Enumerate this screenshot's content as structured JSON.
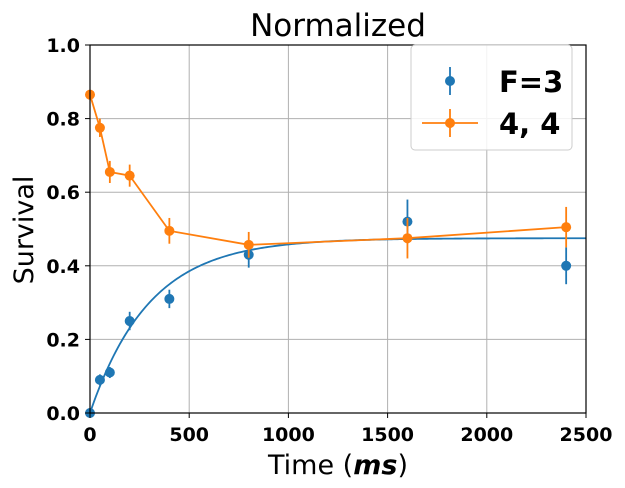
{
  "chart_data": {
    "type": "scatter",
    "title": "Normalized",
    "xlabel_prefix": "Time (",
    "xlabel_unit": "ms",
    "xlabel_suffix": ")",
    "ylabel": "Survival",
    "xlim": [
      0,
      2500
    ],
    "ylim": [
      0.0,
      1.0
    ],
    "xticks": [
      0,
      500,
      1000,
      1500,
      2000,
      2500
    ],
    "xtick_labels": [
      "0",
      "500",
      "1000",
      "1500",
      "2000",
      "2500"
    ],
    "yticks": [
      0.0,
      0.2,
      0.4,
      0.6,
      0.8,
      1.0
    ],
    "ytick_labels": [
      "0.0",
      "0.2",
      "0.4",
      "0.6",
      "0.8",
      "1.0"
    ],
    "grid": true,
    "legend_position": "top-right",
    "series": [
      {
        "name": "F=3",
        "style": "markers",
        "color": "#1f77b4",
        "x": [
          0,
          50,
          100,
          200,
          400,
          800,
          1600,
          2400
        ],
        "y": [
          0.0,
          0.09,
          0.11,
          0.25,
          0.31,
          0.43,
          0.52,
          0.4
        ],
        "yerr": [
          0.01,
          0.015,
          0.015,
          0.025,
          0.025,
          0.035,
          0.06,
          0.05
        ]
      },
      {
        "name": "4, 4",
        "style": "line-markers",
        "color": "#ff7f0e",
        "x": [
          0,
          50,
          100,
          200,
          400,
          800,
          1600,
          2400
        ],
        "y": [
          0.865,
          0.775,
          0.655,
          0.645,
          0.495,
          0.457,
          0.475,
          0.505
        ],
        "yerr": [
          0.01,
          0.025,
          0.03,
          0.03,
          0.035,
          0.035,
          0.055,
          0.055
        ]
      }
    ],
    "fit_curve": {
      "color": "#1f77b4",
      "model": "saturating-exponential",
      "amplitude": 0.475,
      "time_constant": 300,
      "x_range": [
        0,
        2500
      ]
    }
  }
}
